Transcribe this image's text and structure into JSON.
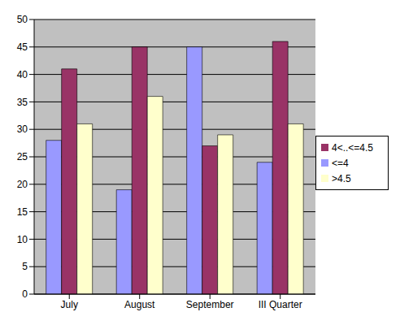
{
  "chart_data": {
    "type": "bar",
    "categories": [
      "July",
      "August",
      "September",
      "III Quarter"
    ],
    "series": [
      {
        "name": "<=4",
        "color": "#9999FF",
        "values": [
          28,
          19,
          45,
          24
        ]
      },
      {
        "name": "4<..<=4.5",
        "color": "#993366",
        "values": [
          41,
          45,
          27,
          46
        ]
      },
      {
        "name": ">4.5",
        "color": "#FFFFCC",
        "values": [
          31,
          36,
          29,
          31
        ]
      }
    ],
    "ylim": [
      0,
      50
    ],
    "yticks": [
      0,
      5,
      10,
      15,
      20,
      25,
      30,
      35,
      40,
      45,
      50
    ],
    "grid": true,
    "legend": "right"
  }
}
